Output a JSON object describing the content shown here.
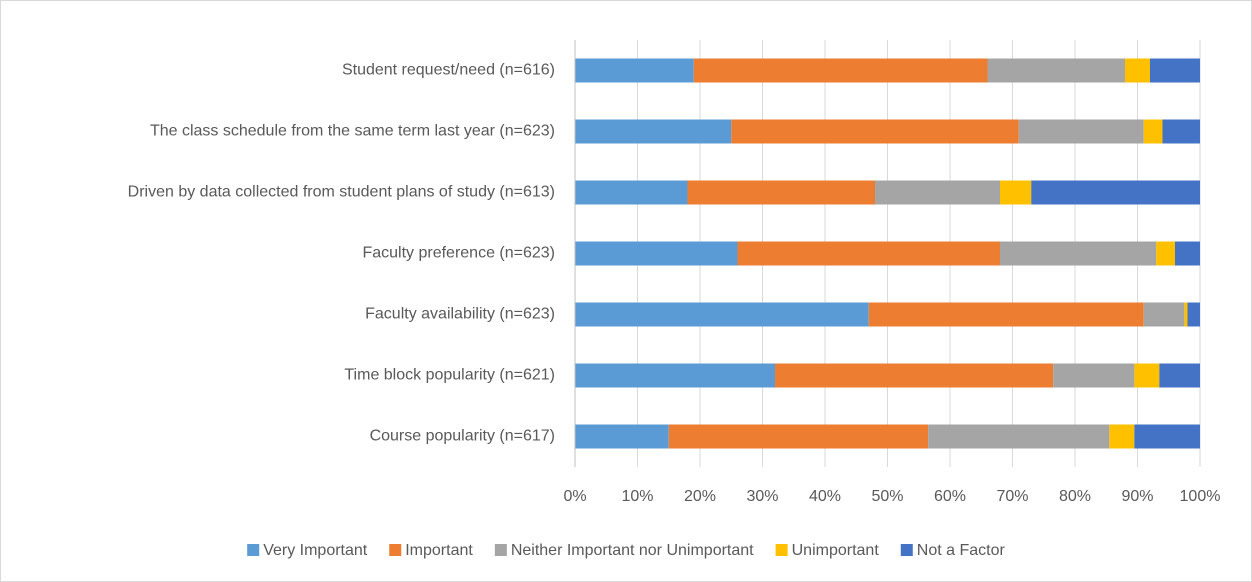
{
  "chart_data": {
    "type": "stacked-bar-horizontal",
    "categories": [
      "Student request/need (n=616)",
      "The class schedule from the same term last year (n=623)",
      "Driven by data collected from student plans of study (n=613)",
      "Faculty preference (n=623)",
      "Faculty availability (n=623)",
      "Time block popularity (n=621)",
      "Course popularity (n=617)"
    ],
    "series": [
      {
        "name": "Very Important",
        "color": "#5b9bd5",
        "values": [
          19,
          25,
          18,
          26,
          47,
          32,
          15
        ]
      },
      {
        "name": "Important",
        "color": "#ed7d31",
        "values": [
          47,
          46,
          30,
          42,
          44,
          44.5,
          41.5
        ]
      },
      {
        "name": "Neither Important nor Unimportant",
        "color": "#a5a5a5",
        "values": [
          22,
          20,
          20,
          25,
          6.5,
          13,
          29
        ]
      },
      {
        "name": "Unimportant",
        "color": "#ffc000",
        "values": [
          4,
          3,
          5,
          3,
          0.5,
          4,
          4
        ]
      },
      {
        "name": "Not a Factor",
        "color": "#4472c4",
        "values": [
          8,
          6,
          27,
          4,
          2,
          6.5,
          10.5
        ]
      }
    ],
    "xlim": [
      0,
      100
    ],
    "xticks": [
      {
        "value": 0,
        "label": "0%"
      },
      {
        "value": 10,
        "label": "10%"
      },
      {
        "value": 20,
        "label": "20%"
      },
      {
        "value": 30,
        "label": "30%"
      },
      {
        "value": 40,
        "label": "40%"
      },
      {
        "value": 50,
        "label": "50%"
      },
      {
        "value": 60,
        "label": "60%"
      },
      {
        "value": 70,
        "label": "70%"
      },
      {
        "value": 80,
        "label": "80%"
      },
      {
        "value": 90,
        "label": "90%"
      },
      {
        "value": 100,
        "label": "100%"
      }
    ],
    "grid": true,
    "legend": "bottom"
  }
}
